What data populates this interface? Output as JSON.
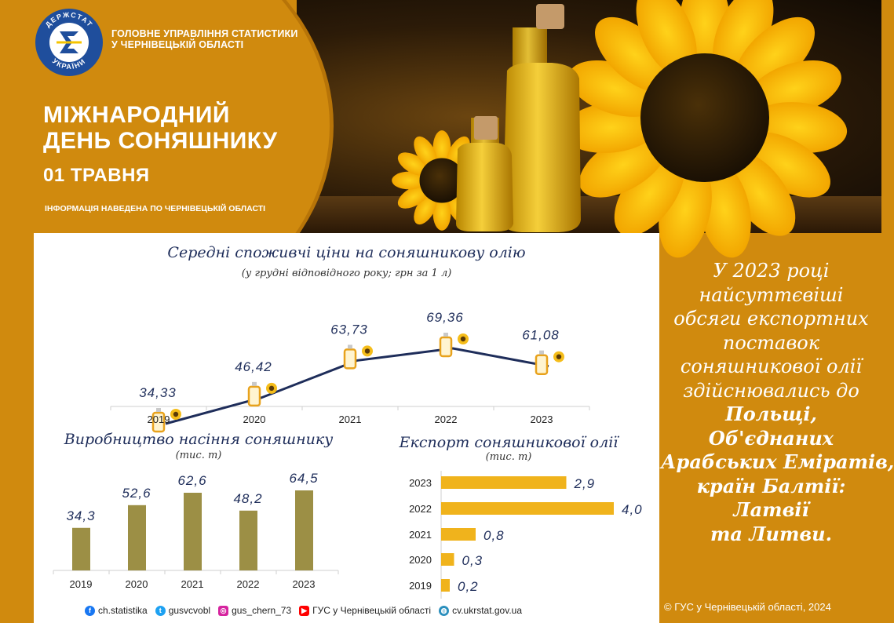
{
  "header": {
    "org_line1": "ГОЛОВНЕ УПРАВЛІННЯ СТАТИСТИКИ",
    "org_line2": "У ЧЕРНІВЕЦЬКІЙ ОБЛАСТІ",
    "title_line1": "МІЖНАРОДНИЙ",
    "title_line2": "ДЕНЬ СОНЯШНИКУ",
    "date": "01 ТРАВНЯ",
    "info": "ІНФОРМАЦІЯ НАВЕДЕНА ПО ЧЕРНІВЕЦЬКІЙ ОБЛАСТІ",
    "logo_text_top": "ДЕРЖСТАТ",
    "logo_text_bottom": "УКРАЇНИ"
  },
  "side": {
    "lines": [
      "У 2023 році",
      "найсуттєвіші",
      "обсяги експортних",
      "поставок",
      "соняшникової олії",
      "здійснювались до"
    ],
    "bold_lines": [
      "Польщі,",
      "Об'єднаних",
      "Арабських Еміратів,",
      "країн Балтії:",
      "Латвії",
      "та Литви."
    ]
  },
  "copyright": "© ГУС у Чернівецькій області, 2024",
  "social": [
    {
      "icon": "facebook-icon",
      "label": "ch.statistika",
      "color": "#1877f2"
    },
    {
      "icon": "twitter-icon",
      "label": "gusvcvobl",
      "color": "#1da1f2"
    },
    {
      "icon": "instagram-icon",
      "label": "gus_chern_73",
      "color": "#d6249f"
    },
    {
      "icon": "youtube-icon",
      "label": "ГУС у Чернівецькій області",
      "color": "#ff0000"
    },
    {
      "icon": "globe-icon",
      "label": "cv.ukrstat.gov.ua",
      "color": "#2a8fbd"
    }
  ],
  "colors": {
    "orange": "#d08a0e",
    "olive": "#9c8f45",
    "bar_yellow": "#f0b31c",
    "navy": "#1e2d5a"
  },
  "chart_data": [
    {
      "type": "line",
      "title": "Середні споживчі ціни на соняшникову олію",
      "subtitle": "(у грудні відповідного року; грн за 1 л)",
      "categories": [
        "2019",
        "2020",
        "2021",
        "2022",
        "2023"
      ],
      "values": [
        34.33,
        46.42,
        63.73,
        69.36,
        61.08
      ],
      "labels": [
        "34,33",
        "46,42",
        "63,73",
        "69,36",
        "61,08"
      ],
      "marker": "oil-bottle-sunflower-icon"
    },
    {
      "type": "bar",
      "title": "Виробництво насіння соняшнику",
      "subtitle": "(тис. т)",
      "categories": [
        "2019",
        "2020",
        "2021",
        "2022",
        "2023"
      ],
      "values": [
        34.3,
        52.6,
        62.6,
        48.2,
        64.5
      ],
      "labels": [
        "34,3",
        "52,6",
        "62,6",
        "48,2",
        "64,5"
      ]
    },
    {
      "type": "bar",
      "orientation": "horizontal",
      "title": "Експорт соняшникової олії",
      "subtitle": "(тис. т)",
      "categories": [
        "2023",
        "2022",
        "2021",
        "2020",
        "2019"
      ],
      "values": [
        2.9,
        4.0,
        0.8,
        0.3,
        0.2
      ],
      "labels": [
        "2,9",
        "4,0",
        "0,8",
        "0,3",
        "0,2"
      ]
    }
  ]
}
